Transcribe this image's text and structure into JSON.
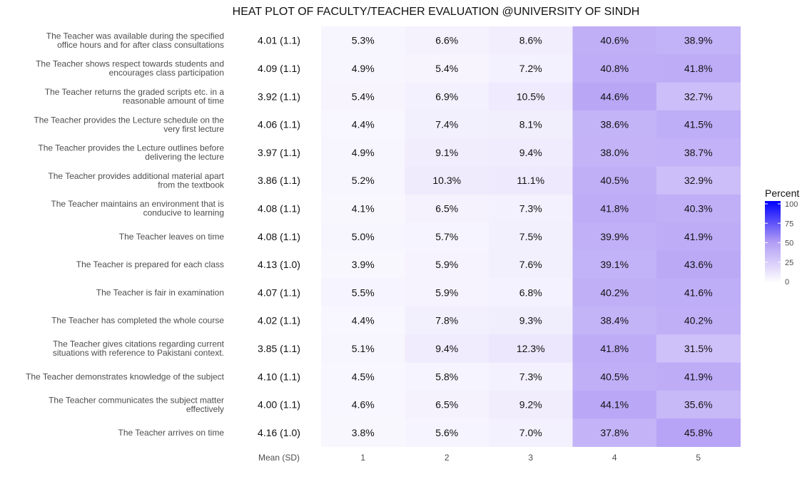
{
  "chart_data": {
    "type": "heatmap",
    "title": "HEAT PLOT OF FACULTY/TEACHER EVALUATION @UNIVERSITY OF SINDH",
    "mean_column_label": "Mean (SD)",
    "columns": [
      "1",
      "2",
      "3",
      "4",
      "5"
    ],
    "legend": {
      "title": "Percent",
      "ticks": [
        100,
        75,
        50,
        25,
        0
      ],
      "range": [
        0,
        100
      ],
      "low_color": "#ffffff",
      "high_color": "#0000ff"
    },
    "rows": [
      {
        "label_lines": [
          "The Teacher was available during the specified",
          "office hours and for after class consultations"
        ],
        "mean_sd": "4.01 (1.1)",
        "values": [
          5.3,
          6.6,
          8.6,
          40.6,
          38.9
        ]
      },
      {
        "label_lines": [
          "The Teacher shows respect towards students and",
          "encourages class participation"
        ],
        "mean_sd": "4.09 (1.1)",
        "values": [
          4.9,
          5.4,
          7.2,
          40.8,
          41.8
        ]
      },
      {
        "label_lines": [
          "The Teacher returns the graded scripts etc. in a",
          "reasonable amount of time"
        ],
        "mean_sd": "3.92 (1.1)",
        "values": [
          5.4,
          6.9,
          10.5,
          44.6,
          32.7
        ]
      },
      {
        "label_lines": [
          "The Teacher provides the Lecture schedule on the",
          "very first lecture"
        ],
        "mean_sd": "4.06 (1.1)",
        "values": [
          4.4,
          7.4,
          8.1,
          38.6,
          41.5
        ]
      },
      {
        "label_lines": [
          "The Teacher provides the Lecture outlines before",
          "delivering the lecture"
        ],
        "mean_sd": "3.97 (1.1)",
        "values": [
          4.9,
          9.1,
          9.4,
          38.0,
          38.7
        ]
      },
      {
        "label_lines": [
          "The Teacher provides additional material apart",
          "from the textbook"
        ],
        "mean_sd": "3.86 (1.1)",
        "values": [
          5.2,
          10.3,
          11.1,
          40.5,
          32.9
        ]
      },
      {
        "label_lines": [
          "The Teacher maintains an environment that is",
          "conducive to learning"
        ],
        "mean_sd": "4.08 (1.1)",
        "values": [
          4.1,
          6.5,
          7.3,
          41.8,
          40.3
        ]
      },
      {
        "label_lines": [
          "The Teacher leaves on time"
        ],
        "mean_sd": "4.08 (1.1)",
        "values": [
          5.0,
          5.7,
          7.5,
          39.9,
          41.9
        ]
      },
      {
        "label_lines": [
          "The Teacher is prepared for each class"
        ],
        "mean_sd": "4.13 (1.0)",
        "values": [
          3.9,
          5.9,
          7.6,
          39.1,
          43.6
        ]
      },
      {
        "label_lines": [
          "The Teacher is fair in examination"
        ],
        "mean_sd": "4.07 (1.1)",
        "values": [
          5.5,
          5.9,
          6.8,
          40.2,
          41.6
        ]
      },
      {
        "label_lines": [
          "The Teacher has completed the whole course"
        ],
        "mean_sd": "4.02 (1.1)",
        "values": [
          4.4,
          7.8,
          9.3,
          38.4,
          40.2
        ]
      },
      {
        "label_lines": [
          "The Teacher gives citations regarding current",
          "situations with reference to Pakistani context."
        ],
        "mean_sd": "3.85 (1.1)",
        "values": [
          5.1,
          9.4,
          12.3,
          41.8,
          31.5
        ]
      },
      {
        "label_lines": [
          "The Teacher demonstrates knowledge of the subject"
        ],
        "mean_sd": "4.10 (1.1)",
        "values": [
          4.5,
          5.8,
          7.3,
          40.5,
          41.9
        ]
      },
      {
        "label_lines": [
          "The Teacher communicates the subject matter",
          "effectively"
        ],
        "mean_sd": "4.00 (1.1)",
        "values": [
          4.6,
          6.5,
          9.2,
          44.1,
          35.6
        ]
      },
      {
        "label_lines": [
          "The Teacher arrives on time"
        ],
        "mean_sd": "4.16 (1.0)",
        "values": [
          3.8,
          5.6,
          7.0,
          37.8,
          45.8
        ]
      }
    ]
  }
}
